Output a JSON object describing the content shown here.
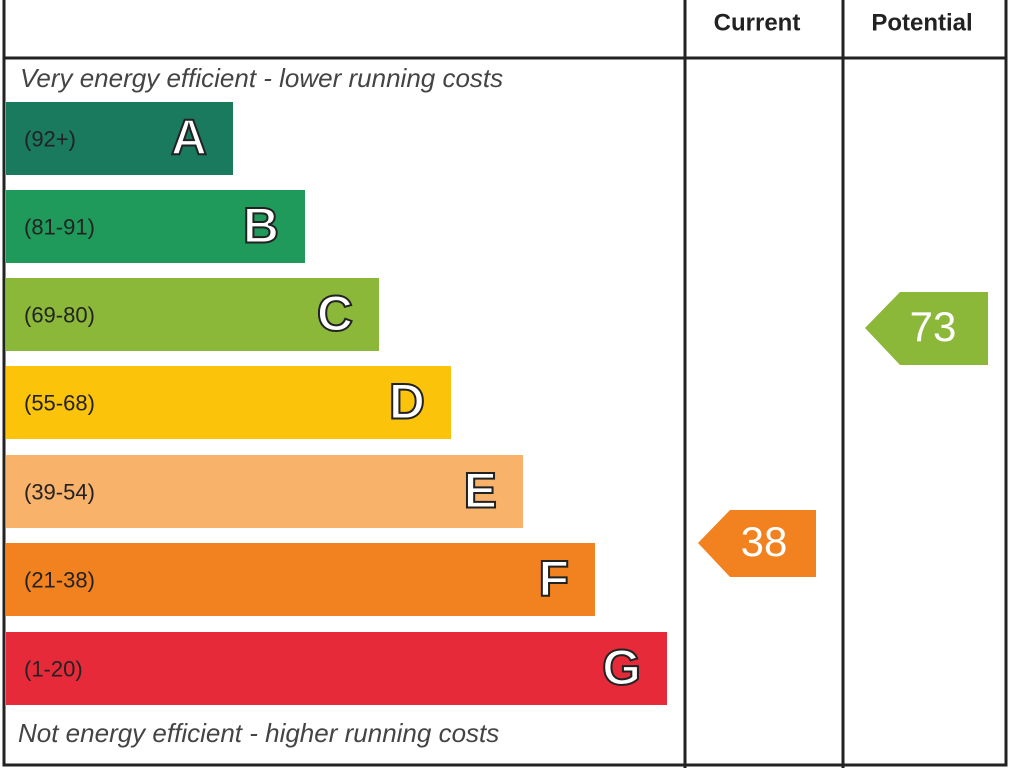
{
  "header": {
    "current": "Current",
    "potential": "Potential"
  },
  "top_note": "Very energy efficient - lower running costs",
  "bands": [
    {
      "range": "(92+)",
      "letter": "A"
    },
    {
      "range": "(81-91)",
      "letter": "B"
    },
    {
      "range": "(69-80)",
      "letter": "C"
    },
    {
      "range": "(55-68)",
      "letter": "D"
    },
    {
      "range": "(39-54)",
      "letter": "E"
    },
    {
      "range": "(21-38)",
      "letter": "F"
    },
    {
      "range": "(1-20)",
      "letter": "G"
    }
  ],
  "bottom_note": "Not energy efficient - higher running costs",
  "current": 38,
  "potential": 73
}
